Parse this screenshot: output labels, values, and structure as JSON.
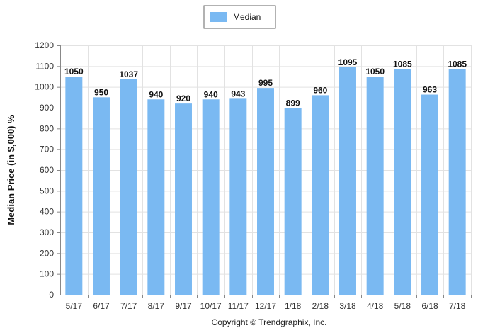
{
  "chart_data": {
    "type": "bar",
    "categories": [
      "5/17",
      "6/17",
      "7/17",
      "8/17",
      "9/17",
      "10/17",
      "11/17",
      "12/17",
      "1/18",
      "2/18",
      "3/18",
      "4/18",
      "5/18",
      "6/18",
      "7/18"
    ],
    "series": [
      {
        "name": "Median",
        "values": [
          1050,
          950,
          1037,
          940,
          920,
          940,
          943,
          995,
          899,
          960,
          1095,
          1050,
          1085,
          963,
          1085
        ],
        "color": "#7ab9f2"
      }
    ],
    "data_labels": [
      "1050",
      "950",
      "1037",
      "940",
      "920",
      "940",
      "943",
      "995",
      "899",
      "960",
      "1095",
      "1050",
      "1085",
      "963",
      "1085"
    ],
    "ylabel": "Median Price (in $,000) %",
    "ylim": [
      0,
      1200
    ],
    "yticks": [
      0,
      100,
      200,
      300,
      400,
      500,
      600,
      700,
      800,
      900,
      1000,
      1100,
      1200
    ],
    "grid": true,
    "legend_position": "top-center"
  },
  "footer": "Copyright © Trendgraphix, Inc."
}
